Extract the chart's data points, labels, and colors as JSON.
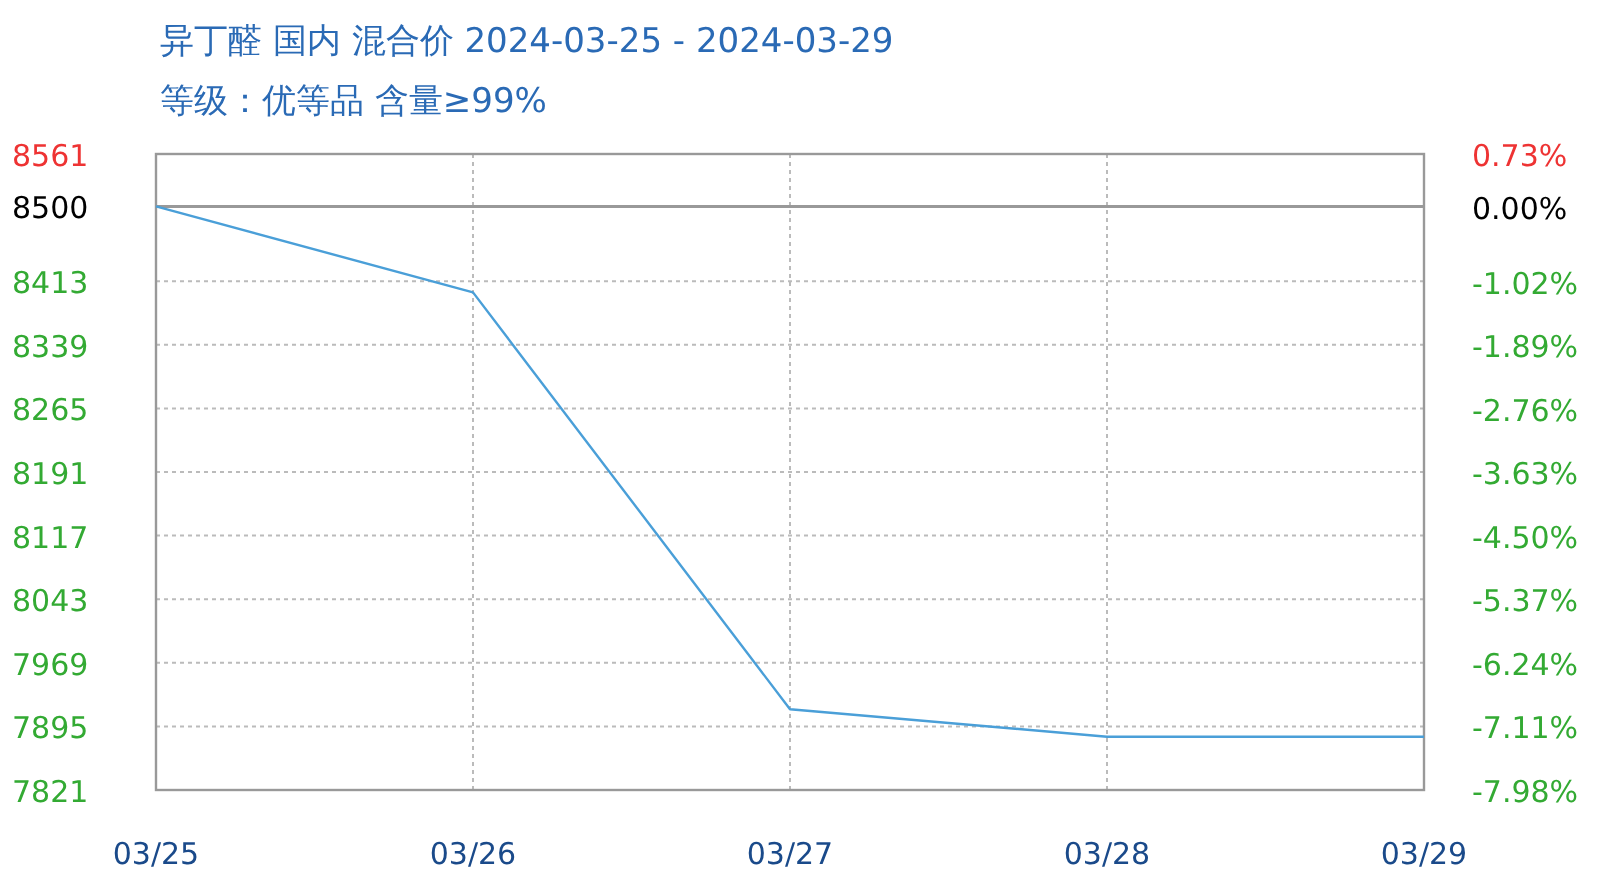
{
  "chart_data": {
    "type": "line",
    "title": "异丁醛 国内 混合价 2024-03-25 - 2024-03-29",
    "subtitle": "等级：优等品 含量≥99%",
    "categories": [
      "03/25",
      "03/26",
      "03/27",
      "03/28",
      "03/29"
    ],
    "series": [
      {
        "color": "#4a9fd8",
        "values": [
          8500,
          8400,
          7915,
          7883,
          7883
        ]
      }
    ],
    "ylim": [
      7821,
      8561
    ],
    "yticks": [
      7821,
      7895,
      7969,
      8043,
      8117,
      8191,
      8265,
      8339,
      8413,
      8500,
      8561
    ],
    "y2lim": [
      -7.98,
      0.73
    ],
    "y2ticks": [
      {
        "value": -7.98,
        "label": "-7.98%"
      },
      {
        "value": -7.11,
        "label": "-7.11%"
      },
      {
        "value": -6.24,
        "label": "-6.24%"
      },
      {
        "value": -5.37,
        "label": "-5.37%"
      },
      {
        "value": -4.5,
        "label": "-4.50%"
      },
      {
        "value": -3.63,
        "label": "-3.63%"
      },
      {
        "value": -2.76,
        "label": "-2.76%"
      },
      {
        "value": -1.89,
        "label": "-1.89%"
      },
      {
        "value": -1.02,
        "label": "-1.02%"
      },
      {
        "value": 0,
        "label": "0.00%"
      },
      {
        "value": 0.73,
        "label": "0.73%"
      }
    ],
    "ref_lines": [
      {
        "axis": "y",
        "value": 8500,
        "color": "#999999"
      }
    ],
    "grid": true,
    "marker": "none",
    "line_style": "solid"
  }
}
